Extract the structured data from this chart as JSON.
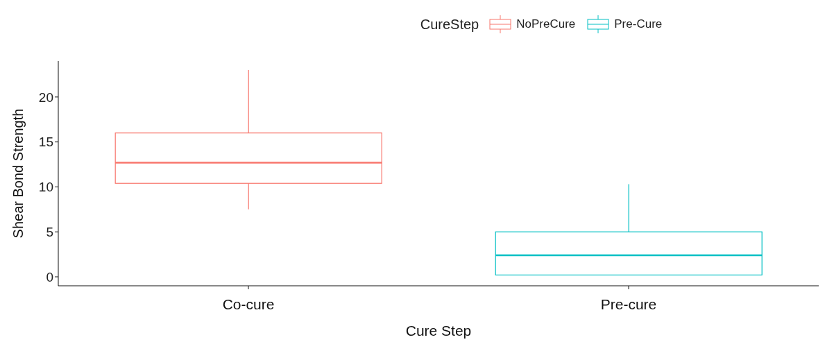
{
  "chart_data": {
    "type": "box",
    "xlabel": "Cure Step",
    "ylabel": "Shear Bond Strength",
    "legend_title": "CureStep",
    "legend": "top",
    "categories": [
      "Co-cure",
      "Pre-cure"
    ],
    "series": [
      {
        "name": "NoPreCure",
        "color": "#f8766d",
        "boxes": [
          {
            "low": 7.5,
            "q1": 10.4,
            "median": 12.7,
            "q3": 16.0,
            "high": 23.0
          },
          null
        ]
      },
      {
        "name": "Pre-Cure",
        "color": "#00bfc4",
        "boxes": [
          null,
          {
            "low": 0.2,
            "q1": 0.2,
            "median": 2.4,
            "q3": 5.0,
            "high": 10.3
          }
        ]
      }
    ],
    "ylim": [
      -1,
      24
    ],
    "yticks": [
      0,
      5,
      10,
      15,
      20
    ],
    "grid": false
  }
}
